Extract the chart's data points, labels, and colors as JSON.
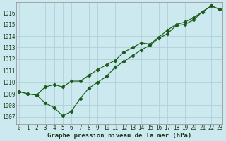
{
  "xlabel": "Graphe pression niveau de la mer (hPa)",
  "background_color": "#cde9f0",
  "line_color": "#1a5c1a",
  "grid_color": "#b0d0d8",
  "x_ticks": [
    0,
    1,
    2,
    3,
    4,
    5,
    6,
    7,
    8,
    9,
    10,
    11,
    12,
    13,
    14,
    15,
    16,
    17,
    18,
    19,
    20,
    21,
    22,
    23
  ],
  "y_ticks": [
    1007,
    1008,
    1009,
    1010,
    1011,
    1012,
    1013,
    1014,
    1015,
    1016
  ],
  "ylim": [
    1006.4,
    1016.9
  ],
  "xlim": [
    -0.3,
    23.3
  ],
  "series1": [
    1009.2,
    1009.0,
    1008.9,
    1008.2,
    1007.8,
    1007.1,
    1007.5,
    1008.6,
    1009.5,
    1010.0,
    1010.5,
    1011.3,
    1011.8,
    1012.3,
    1012.8,
    1013.2,
    1013.8,
    1014.2,
    1014.9,
    1015.0,
    1015.4,
    1016.1,
    1016.6,
    1016.3
  ],
  "series2": [
    1009.2,
    1009.0,
    1008.9,
    1009.6,
    1009.8,
    1009.6,
    1010.1,
    1010.1,
    1010.6,
    1011.1,
    1011.5,
    1011.9,
    1012.6,
    1013.0,
    1013.4,
    1013.3,
    1013.9,
    1014.5,
    1015.0,
    1015.2,
    1015.6,
    1016.1,
    1016.6,
    1016.3
  ],
  "tick_fontsize": 5.5,
  "xlabel_fontsize": 6.5
}
